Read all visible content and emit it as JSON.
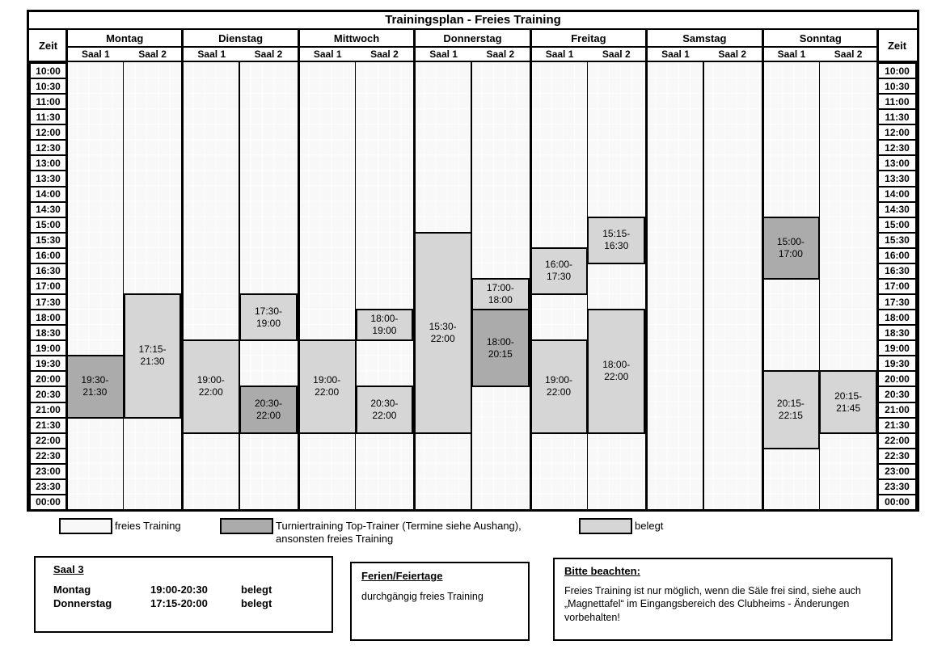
{
  "title": "Trainingsplan - Freies Training",
  "table": {
    "zeit_label": "Zeit",
    "saal_labels": [
      "Saal 1",
      "Saal 2"
    ],
    "days": [
      "Montag",
      "Dienstag",
      "Mittwoch",
      "Donnerstag",
      "Freitag",
      "Samstag",
      "Sonntag"
    ],
    "times": [
      "10:00",
      "10:30",
      "11:00",
      "11:30",
      "12:00",
      "12:30",
      "13:00",
      "13:30",
      "14:00",
      "14:30",
      "15:00",
      "15:30",
      "16:00",
      "16:30",
      "17:00",
      "17:30",
      "18:00",
      "18:30",
      "19:00",
      "19:30",
      "20:00",
      "20:30",
      "21:00",
      "21:30",
      "22:00",
      "22:30",
      "23:00",
      "23:30",
      "00:00"
    ],
    "blocks": [
      {
        "day": 0,
        "saal": 0,
        "start": "19:30",
        "end": "21:30",
        "row_start": 19,
        "row_end": 23,
        "type": "turnier"
      },
      {
        "day": 0,
        "saal": 1,
        "start": "17:15",
        "end": "21:30",
        "row_start": 15,
        "row_end": 23,
        "type": "belegt"
      },
      {
        "day": 1,
        "saal": 0,
        "start": "19:00",
        "end": "22:00",
        "row_start": 18,
        "row_end": 24,
        "type": "belegt"
      },
      {
        "day": 1,
        "saal": 1,
        "start": "17:30",
        "end": "19:00",
        "row_start": 15,
        "row_end": 18,
        "type": "belegt"
      },
      {
        "day": 1,
        "saal": 1,
        "start": "20:30",
        "end": "22:00",
        "row_start": 21,
        "row_end": 24,
        "type": "turnier"
      },
      {
        "day": 2,
        "saal": 0,
        "start": "19:00",
        "end": "22:00",
        "row_start": 18,
        "row_end": 24,
        "type": "belegt"
      },
      {
        "day": 2,
        "saal": 1,
        "start": "18:00",
        "end": "19:00",
        "row_start": 16,
        "row_end": 18,
        "type": "belegt"
      },
      {
        "day": 2,
        "saal": 1,
        "start": "20:30",
        "end": "22:00",
        "row_start": 21,
        "row_end": 24,
        "type": "belegt"
      },
      {
        "day": 3,
        "saal": 0,
        "start": "15:30",
        "end": "22:00",
        "row_start": 11,
        "row_end": 24,
        "type": "belegt"
      },
      {
        "day": 3,
        "saal": 1,
        "start": "17:00",
        "end": "18:00",
        "row_start": 14,
        "row_end": 16,
        "type": "belegt"
      },
      {
        "day": 3,
        "saal": 1,
        "start": "18:00",
        "end": "20:15",
        "row_start": 16,
        "row_end": 21,
        "type": "turnier"
      },
      {
        "day": 4,
        "saal": 0,
        "start": "16:00",
        "end": "17:30",
        "row_start": 12,
        "row_end": 15,
        "type": "belegt"
      },
      {
        "day": 4,
        "saal": 0,
        "start": "19:00",
        "end": "22:00",
        "row_start": 18,
        "row_end": 24,
        "type": "belegt"
      },
      {
        "day": 4,
        "saal": 1,
        "start": "15:15",
        "end": "16:30",
        "row_start": 10,
        "row_end": 13,
        "type": "belegt"
      },
      {
        "day": 4,
        "saal": 1,
        "start": "18:00",
        "end": "22:00",
        "row_start": 16,
        "row_end": 24,
        "type": "belegt"
      },
      {
        "day": 6,
        "saal": 0,
        "start": "15:00",
        "end": "17:00",
        "row_start": 10,
        "row_end": 14,
        "type": "turnier"
      },
      {
        "day": 6,
        "saal": 0,
        "start": "20:15",
        "end": "22:15",
        "row_start": 20,
        "row_end": 25,
        "type": "belegt"
      },
      {
        "day": 6,
        "saal": 1,
        "start": "20:15",
        "end": "21:45",
        "row_start": 20,
        "row_end": 24,
        "type": "belegt"
      }
    ]
  },
  "colors": {
    "frei": "#f8f8f8",
    "belegt": "#d6d6d6",
    "turnier": "#ababab",
    "border": "#000000"
  },
  "legend": [
    {
      "type": "frei",
      "label": "freies Training"
    },
    {
      "type": "turnier",
      "label": "Turniertraining Top-Trainer (Termine siehe Aushang), ansonsten freies Training"
    },
    {
      "type": "belegt",
      "label": "belegt"
    }
  ],
  "saal3_box": {
    "title": "Saal 3",
    "rows": [
      {
        "day": "Montag",
        "time": "19:00-20:30",
        "status": "belegt"
      },
      {
        "day": "Donnerstag",
        "time": "17:15-20:00",
        "status": "belegt"
      }
    ]
  },
  "ferien_box": {
    "title": "Ferien/Feiertage",
    "text": "durchgängig freies Training"
  },
  "hinweis_box": {
    "title": "Bitte beachten:",
    "text": "Freies Training ist nur möglich, wenn die Säle frei sind, siehe auch „Magnettafel“ im Eingangsbereich des Clubheims - Änderungen vorbehalten!"
  }
}
